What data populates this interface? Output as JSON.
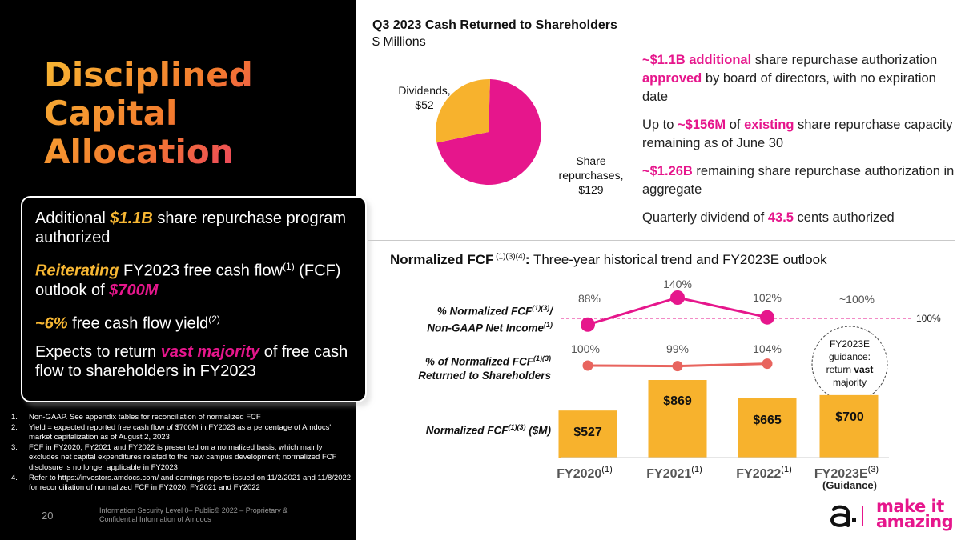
{
  "slide": {
    "title_lines": [
      "Disciplined",
      "Capital",
      "Allocation"
    ],
    "page_number": "20",
    "confidentiality": "Information Security Level 0– Public© 2022 – Proprietary & Confidential Information of Amdocs"
  },
  "callout": {
    "p1_pre": "Additional ",
    "p1_hl": "$1.1B",
    "p1_post": " share repurchase program authorized",
    "p2_hl": "Reiterating",
    "p2_mid": " FY2023 free cash flow",
    "p2_sup": "(1)",
    "p2_mid2": " (FCF) outlook of ",
    "p2_hl2": "$700M",
    "p3_hl": "~6%",
    "p3_mid": " free cash flow yield",
    "p3_sup": "(2)",
    "p4_pre": "Expects to return ",
    "p4_hl": "vast majority",
    "p4_post": " of free cash flow to shareholders in FY2023"
  },
  "footnotes": [
    {
      "num": "1.",
      "text": "Non-GAAP. See appendix tables for reconciliation of normalized FCF"
    },
    {
      "num": "2.",
      "text": "Yield = expected reported free cash flow of $700M in FY2023 as a percentage of Amdocs' market capitalization as of August 2, 2023"
    },
    {
      "num": "3.",
      "text": "FCF in FY2020, FY2021 and FY2022 is presented on a normalized basis, which mainly excludes net capital expenditures related to the new campus development; normalized FCF disclosure is no longer applicable in FY2023"
    },
    {
      "num": "4.",
      "text": "Refer to https://investors.amdocs.com/ and earnings reports issued on 11/2/2021 and 11/8/2022 for reconciliation of normalized FCF in FY2020, FY2021 and FY2022"
    }
  ],
  "cash_returned": {
    "title": "Q3 2023 Cash Returned to Shareholders",
    "subtitle": "$ Millions",
    "dividends_label": "Dividends,",
    "dividends_value": "$52",
    "share_label_1": "Share",
    "share_label_2": "repurchases,",
    "share_value": "$129"
  },
  "bullets": {
    "b1_hl1": "~$1.1B additional",
    "b1_mid": " share repurchase authorization ",
    "b1_hl2": "approved",
    "b1_post": " by board of directors, with no expiration date",
    "b2_pre": "Up to ",
    "b2_hl1": "~$156M",
    "b2_mid": " of ",
    "b2_hl2": "existing",
    "b2_post": " share repurchase capacity remaining as of June 30",
    "b3_hl": "~$1.26B",
    "b3_post": " remaining share repurchase authorization in aggregate",
    "b4_pre": "Quarterly dividend of ",
    "b4_hl": "43.5",
    "b4_post": " cents authorized"
  },
  "fcf": {
    "title_bold": "Normalized FCF",
    "title_sup": " (1)(3)(4)",
    "title_colon": ":",
    "title_rest": " Three-year historical trend and FY2023E outlook",
    "row1_label_a": "% Normalized FCF",
    "row1_sup": "(1)(3)",
    "row1_label_b": "/",
    "row1_label_c": "Non-GAAP Net Income",
    "row1_sup2": "(1)",
    "row2_label_a": "% of Normalized FCF",
    "row2_sup": "(1)(3)",
    "row2_label_b": "Returned to Shareholders",
    "row3_label_a": "Normalized FCF",
    "row3_sup": "(1)(3)",
    "row3_label_b": " ($M)",
    "reference_label": "100%",
    "guidance_line1": "FY2023E",
    "guidance_line2": "guidance:",
    "guidance_line3a": "return ",
    "guidance_line3b": "vast",
    "guidance_line4": "majority",
    "guidance_sub": "(Guidance)"
  },
  "chart_data": [
    {
      "type": "pie",
      "title": "Q3 2023 Cash Returned to Shareholders",
      "subtitle": "$ Millions",
      "slices": [
        {
          "label": "Share repurchases",
          "value": 129,
          "color": "#e6168c"
        },
        {
          "label": "Dividends",
          "value": 52,
          "color": "#f7b22d"
        }
      ]
    },
    {
      "type": "line",
      "title": "% Normalized FCF / Non-GAAP Net Income",
      "categories": [
        "FY2020",
        "FY2021",
        "FY2022",
        "FY2023E"
      ],
      "values": [
        88,
        140,
        102,
        null
      ],
      "point_labels": [
        "88%",
        "140%",
        "102%",
        "~100%"
      ],
      "reference_line": 100,
      "color": "#e6168c"
    },
    {
      "type": "line",
      "title": "% of Normalized FCF Returned to Shareholders",
      "categories": [
        "FY2020",
        "FY2021",
        "FY2022"
      ],
      "values": [
        100,
        99,
        104
      ],
      "point_labels": [
        "100%",
        "99%",
        "104%"
      ],
      "color": "#e8645e"
    },
    {
      "type": "bar",
      "title": "Normalized FCF ($M)",
      "categories": [
        "FY2020",
        "FY2021",
        "FY2022",
        "FY2023E"
      ],
      "category_sups": [
        "(1)",
        "(1)",
        "(1)",
        "(3)"
      ],
      "values": [
        527,
        869,
        665,
        700
      ],
      "value_labels": [
        "$527",
        "$869",
        "$665",
        "$700"
      ],
      "color": "#f7b22d"
    }
  ],
  "brand": {
    "line1": "make it",
    "line2": "amazing"
  },
  "colors": {
    "pink": "#e6168c",
    "yellow": "#f7b22d",
    "coral": "#e8645e"
  }
}
